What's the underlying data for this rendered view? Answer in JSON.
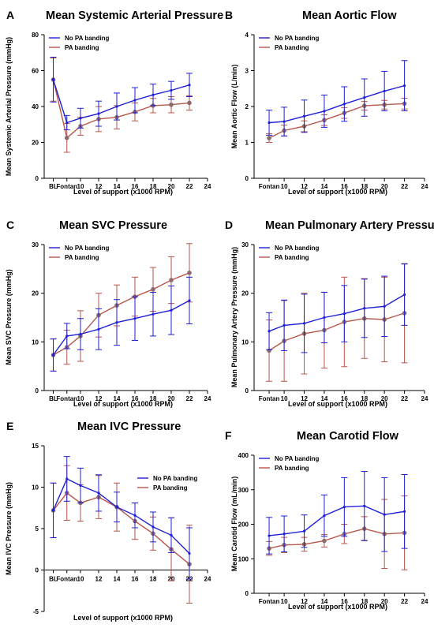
{
  "figure": {
    "background": "#ffffff"
  },
  "series_styles": [
    {
      "name": "No PA banding",
      "color": "#1f1fd6"
    },
    {
      "name": "PA banding",
      "color": "#b8564a",
      "marker": "#8a6a6a"
    }
  ],
  "chart_data": [
    {
      "letter": "A",
      "type": "line",
      "title": "Mean Systemic Arterial Pressure",
      "xlabel": "Level of support (x1000 RPM)",
      "ylabel": "Mean Systemic Arterial Pressure (mmHg)",
      "xlim": [
        6,
        24
      ],
      "ylim": [
        0,
        80
      ],
      "xticks": [
        {
          "v": 7,
          "t": "BL"
        },
        {
          "v": 8.5,
          "t": "Fontan"
        },
        {
          "v": 10,
          "t": "10"
        },
        {
          "v": 12,
          "t": "12"
        },
        {
          "v": 14,
          "t": "14"
        },
        {
          "v": 16,
          "t": "16"
        },
        {
          "v": 18,
          "t": "18"
        },
        {
          "v": 20,
          "t": "20"
        },
        {
          "v": 22,
          "t": "22"
        },
        {
          "v": 24,
          "t": "24"
        }
      ],
      "yticks": [
        0,
        20,
        40,
        60,
        80
      ],
      "legend": "top-left",
      "series": [
        {
          "name": "No PA banding",
          "x": [
            7,
            8.5,
            10,
            12,
            14,
            16,
            18,
            20,
            22
          ],
          "y": [
            55,
            31,
            33.5,
            36,
            40,
            43.5,
            46.5,
            49,
            52
          ],
          "err": [
            12.5,
            4,
            5.5,
            7,
            7.5,
            7,
            6,
            5,
            6.5
          ]
        },
        {
          "name": "PA banding",
          "x": [
            7,
            8.5,
            10,
            12,
            14,
            16,
            18,
            20,
            22
          ],
          "y": [
            55,
            22.5,
            29,
            33,
            34,
            37,
            40.5,
            41,
            42
          ],
          "err": [
            12,
            8,
            5,
            7,
            6.5,
            5,
            4,
            4.5,
            4
          ]
        }
      ]
    },
    {
      "letter": "B",
      "type": "line",
      "title": "Mean Aortic Flow",
      "xlabel": "Level of support (x1000 RPM)",
      "ylabel": "Mean Aortic Flow (L/min)",
      "xlim": [
        7,
        24
      ],
      "ylim": [
        0,
        4
      ],
      "xticks": [
        {
          "v": 8.5,
          "t": "Fontan"
        },
        {
          "v": 10,
          "t": "10"
        },
        {
          "v": 12,
          "t": "12"
        },
        {
          "v": 14,
          "t": "14"
        },
        {
          "v": 16,
          "t": "16"
        },
        {
          "v": 18,
          "t": "18"
        },
        {
          "v": 20,
          "t": "20"
        },
        {
          "v": 22,
          "t": "22"
        },
        {
          "v": 24,
          "t": "24"
        }
      ],
      "yticks": [
        0,
        1,
        2,
        3,
        4
      ],
      "legend": "top-left",
      "series": [
        {
          "name": "No PA banding",
          "x": [
            8.5,
            10,
            12,
            14,
            16,
            18,
            20,
            22
          ],
          "y": [
            1.55,
            1.58,
            1.73,
            1.87,
            2.07,
            2.25,
            2.43,
            2.58
          ],
          "err": [
            0.35,
            0.4,
            0.45,
            0.45,
            0.48,
            0.52,
            0.55,
            0.7
          ]
        },
        {
          "name": "PA banding",
          "x": [
            8.5,
            10,
            12,
            14,
            16,
            18,
            20,
            22
          ],
          "y": [
            1.12,
            1.33,
            1.45,
            1.62,
            1.82,
            2.02,
            2.05,
            2.08
          ],
          "err": [
            0.12,
            0.15,
            0.15,
            0.15,
            0.15,
            0.12,
            0.12,
            0.15
          ]
        }
      ]
    },
    {
      "letter": "C",
      "type": "line",
      "title": "Mean SVC Pressure",
      "xlabel": "Level of support (x1000 RPM)",
      "ylabel": "Mean SVC Pressure (mmHg)",
      "xlim": [
        6,
        24
      ],
      "ylim": [
        0,
        30
      ],
      "xticks": [
        {
          "v": 7,
          "t": "BL"
        },
        {
          "v": 8.5,
          "t": "Fontan"
        },
        {
          "v": 10,
          "t": "10"
        },
        {
          "v": 12,
          "t": "12"
        },
        {
          "v": 14,
          "t": "14"
        },
        {
          "v": 16,
          "t": "16"
        },
        {
          "v": 18,
          "t": "18"
        },
        {
          "v": 20,
          "t": "20"
        },
        {
          "v": 22,
          "t": "22"
        },
        {
          "v": 24,
          "t": "24"
        }
      ],
      "yticks": [
        0,
        10,
        20,
        30
      ],
      "legend": "top-left",
      "series": [
        {
          "name": "No PA banding",
          "x": [
            7,
            8.5,
            10,
            12,
            14,
            16,
            18,
            20,
            22
          ],
          "y": [
            7.3,
            11.2,
            11.6,
            12.6,
            14,
            14.8,
            15.7,
            16.5,
            18.5
          ],
          "err": [
            3.3,
            2.6,
            3.2,
            4.2,
            4.7,
            4.5,
            4.5,
            5,
            4.8
          ]
        },
        {
          "name": "PA banding",
          "x": [
            7,
            8.5,
            10,
            12,
            14,
            16,
            18,
            20,
            22
          ],
          "y": [
            7.3,
            8.9,
            11.2,
            15.5,
            17.5,
            19.3,
            20.8,
            22.7,
            24.2
          ],
          "err": [
            3.3,
            3.5,
            5.2,
            4.5,
            4.2,
            4,
            4.5,
            4.8,
            6
          ]
        }
      ]
    },
    {
      "letter": "D",
      "type": "line",
      "title": "Mean Pulmonary Artery Pressure",
      "xlabel": "Level of support (x1000 RPM)",
      "ylabel": "Mean Pulmonary  Artery Pressure (mmHg)",
      "xlim": [
        7,
        24
      ],
      "ylim": [
        0,
        30
      ],
      "xticks": [
        {
          "v": 8.5,
          "t": "Fontan"
        },
        {
          "v": 10,
          "t": "10"
        },
        {
          "v": 12,
          "t": "12"
        },
        {
          "v": 14,
          "t": "14"
        },
        {
          "v": 16,
          "t": "16"
        },
        {
          "v": 18,
          "t": "18"
        },
        {
          "v": 20,
          "t": "20"
        },
        {
          "v": 22,
          "t": "22"
        },
        {
          "v": 24,
          "t": "24"
        }
      ],
      "yticks": [
        0,
        10,
        20,
        30
      ],
      "legend": "top-left",
      "series": [
        {
          "name": "No PA banding",
          "x": [
            8.5,
            10,
            12,
            14,
            16,
            18,
            20,
            22
          ],
          "y": [
            12.2,
            13.4,
            13.8,
            15,
            15.8,
            16.9,
            17.3,
            19.7
          ],
          "err": [
            3.8,
            5.2,
            6,
            5.2,
            5.8,
            6,
            6.2,
            6.3
          ]
        },
        {
          "name": "PA banding",
          "x": [
            8.5,
            10,
            12,
            14,
            16,
            18,
            20,
            22
          ],
          "y": [
            8.2,
            10.2,
            11.7,
            12.4,
            14.1,
            14.8,
            14.6,
            15.9
          ],
          "err": [
            6.3,
            8.3,
            8.3,
            7.8,
            9.2,
            8.2,
            8.7,
            10.2
          ]
        }
      ]
    },
    {
      "letter": "E",
      "type": "line",
      "title": "Mean IVC Pressure",
      "xlabel": "Level of support (x1000 RPM)",
      "ylabel": "Mean IVC Pressure (mmHg)",
      "xlim": [
        6,
        24
      ],
      "ylim": [
        -5,
        15
      ],
      "xticks": [
        {
          "v": 7,
          "t": "BL"
        },
        {
          "v": 8.5,
          "t": "Fontan"
        },
        {
          "v": 10,
          "t": "10"
        },
        {
          "v": 12,
          "t": "12"
        },
        {
          "v": 14,
          "t": "14"
        },
        {
          "v": 16,
          "t": "16"
        },
        {
          "v": 18,
          "t": "18"
        },
        {
          "v": 20,
          "t": "20"
        },
        {
          "v": 22,
          "t": "22"
        },
        {
          "v": 24,
          "t": "24"
        }
      ],
      "yticks": [
        -5,
        0,
        5,
        10,
        15
      ],
      "legend": "right",
      "series": [
        {
          "name": "No PA banding",
          "x": [
            7,
            8.5,
            10,
            12,
            14,
            16,
            18,
            20,
            22
          ],
          "y": [
            7.2,
            11,
            10.2,
            9.3,
            7.6,
            6.6,
            5.2,
            4.2,
            2
          ],
          "err": [
            3.3,
            2.7,
            2.1,
            2.2,
            1.8,
            1.5,
            1.8,
            2.1,
            3.1
          ]
        },
        {
          "name": "PA banding",
          "x": [
            7,
            8.5,
            10,
            12,
            14,
            16,
            18,
            20,
            22
          ],
          "y": [
            7.2,
            9.3,
            8.1,
            8.8,
            7.6,
            5.9,
            4.4,
            2.5,
            0.7
          ],
          "err": [
            3.3,
            3.3,
            2.2,
            2.6,
            2.9,
            2.2,
            2,
            3.8,
            4.7
          ]
        }
      ]
    },
    {
      "letter": "F",
      "type": "line",
      "title": "Mean Carotid Flow",
      "xlabel": "Level of support (x1000 RPM)",
      "ylabel": "Mean Carotid Flow (mL/min)",
      "xlim": [
        7,
        24
      ],
      "ylim": [
        0,
        400
      ],
      "xticks": [
        {
          "v": 8.5,
          "t": "Fontan"
        },
        {
          "v": 10,
          "t": "10"
        },
        {
          "v": 12,
          "t": "12"
        },
        {
          "v": 14,
          "t": "14"
        },
        {
          "v": 16,
          "t": "16"
        },
        {
          "v": 18,
          "t": "18"
        },
        {
          "v": 20,
          "t": "20"
        },
        {
          "v": 22,
          "t": "22"
        },
        {
          "v": 24,
          "t": "24"
        }
      ],
      "yticks": [
        0,
        100,
        200,
        300,
        400
      ],
      "legend": "top-left",
      "series": [
        {
          "name": "No PA banding",
          "x": [
            8.5,
            10,
            12,
            14,
            16,
            18,
            20,
            22
          ],
          "y": [
            167,
            172,
            180,
            225,
            250,
            253,
            228,
            237
          ],
          "err": [
            53,
            52,
            47,
            60,
            85,
            100,
            107,
            107
          ]
        },
        {
          "name": "PA banding",
          "x": [
            8.5,
            10,
            12,
            14,
            16,
            18,
            20,
            22
          ],
          "y": [
            130,
            140,
            142,
            152,
            172,
            187,
            172,
            175
          ],
          "err": [
            20,
            22,
            20,
            18,
            28,
            35,
            100,
            107
          ]
        }
      ]
    }
  ]
}
